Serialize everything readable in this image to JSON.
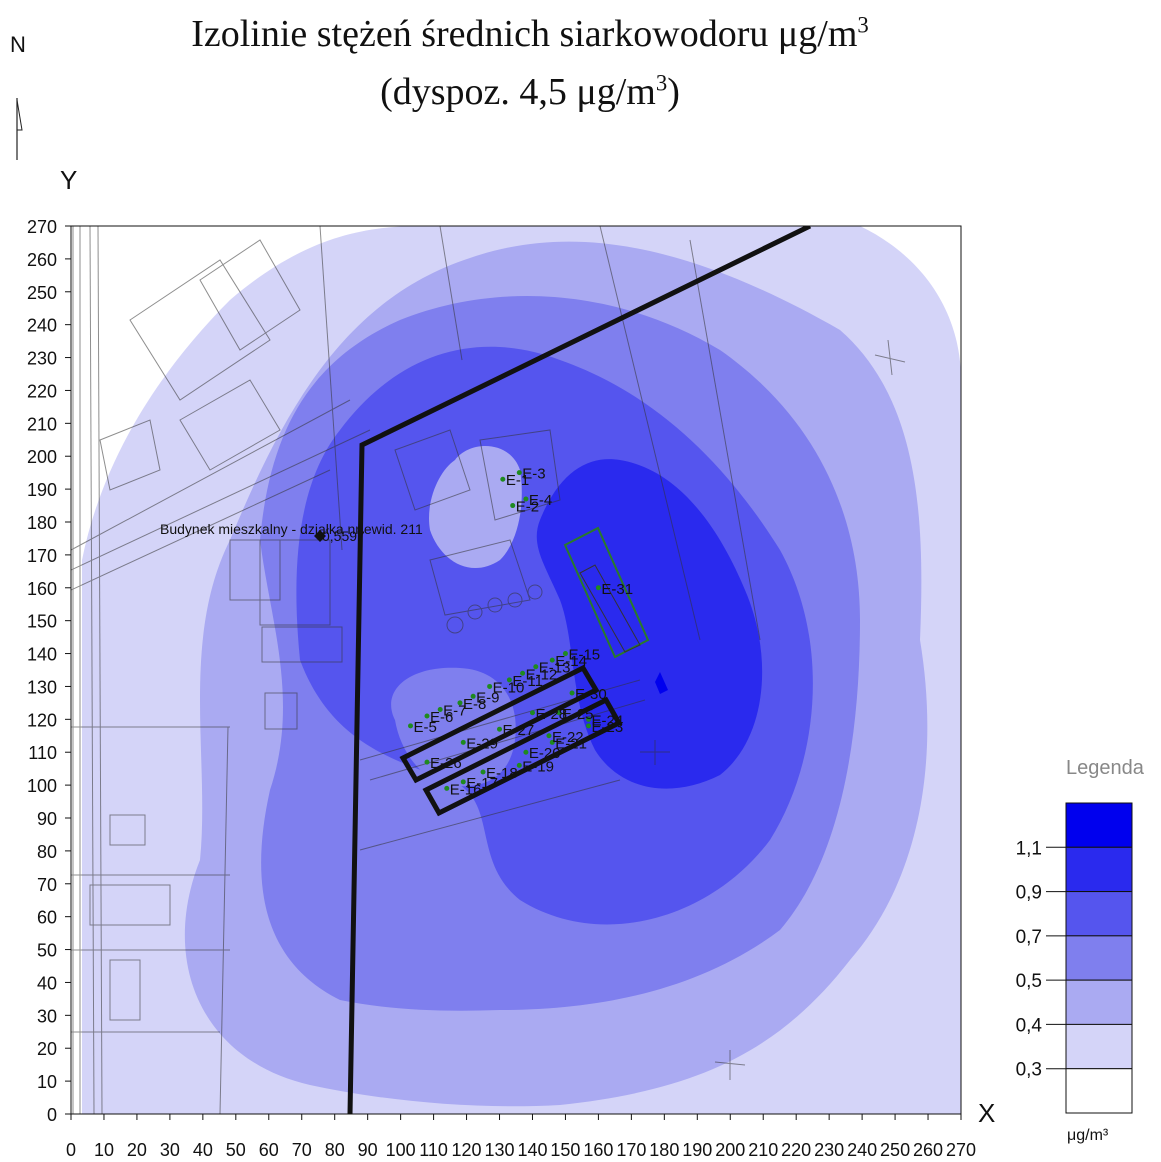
{
  "title_line1_text": "Izolinie stężeń średnich siarkowodoru μg/m",
  "title_line1_sup": "3",
  "title_line2_text": "(dyspoz. 4,5 μg/m",
  "title_line2_sup": "3",
  "title_line2_end": ")",
  "north_label": "N",
  "y_axis_label": "Y",
  "x_axis_label": "X",
  "x_ticks": [
    "0",
    "10",
    "20",
    "30",
    "40",
    "50",
    "60",
    "70",
    "80",
    "90",
    "100",
    "110",
    "120",
    "130",
    "140",
    "150",
    "160",
    "170",
    "180",
    "190",
    "200",
    "210",
    "220",
    "230",
    "240",
    "250",
    "260",
    "270"
  ],
  "y_ticks": [
    "0",
    "10",
    "20",
    "30",
    "40",
    "50",
    "60",
    "70",
    "80",
    "90",
    "100",
    "110",
    "120",
    "130",
    "140",
    "150",
    "160",
    "170",
    "180",
    "190",
    "200",
    "210",
    "220",
    "230",
    "240",
    "250",
    "260",
    "270"
  ],
  "legend": {
    "title": "Legenda",
    "unit": "μg/m³",
    "levels": [
      "0,3",
      "0,4",
      "0,5",
      "0,7",
      "0,9",
      "1,1"
    ],
    "colors": [
      "#ffffff",
      "#d4d4f8",
      "#aaaaf2",
      "#7f7fee",
      "#5555ee",
      "#2a2aee",
      "#0000ee"
    ]
  },
  "annotations": {
    "building_label": "Budynek mieszkalny - działka nr ewid. 211",
    "receptor_value": "0,5597"
  },
  "emitters": [
    {
      "label": "E-1",
      "x": 131,
      "y": 193
    },
    {
      "label": "E-2",
      "x": 134,
      "y": 185
    },
    {
      "label": "E-3",
      "x": 136,
      "y": 195
    },
    {
      "label": "E-4",
      "x": 138,
      "y": 187
    },
    {
      "label": "E-5",
      "x": 103,
      "y": 118
    },
    {
      "label": "E-6",
      "x": 108,
      "y": 121
    },
    {
      "label": "E-7",
      "x": 112,
      "y": 123
    },
    {
      "label": "E-8",
      "x": 118,
      "y": 125
    },
    {
      "label": "E-9",
      "x": 122,
      "y": 127
    },
    {
      "label": "E-10",
      "x": 127,
      "y": 130
    },
    {
      "label": "E-11",
      "x": 133,
      "y": 132
    },
    {
      "label": "E-12",
      "x": 137,
      "y": 134
    },
    {
      "label": "E-13",
      "x": 141,
      "y": 136
    },
    {
      "label": "E-14",
      "x": 146,
      "y": 138
    },
    {
      "label": "E-15",
      "x": 150,
      "y": 140
    },
    {
      "label": "E-16",
      "x": 114,
      "y": 99
    },
    {
      "label": "E-17",
      "x": 119,
      "y": 101
    },
    {
      "label": "E-18",
      "x": 125,
      "y": 104
    },
    {
      "label": "E-19",
      "x": 136,
      "y": 106
    },
    {
      "label": "E-20",
      "x": 138,
      "y": 110
    },
    {
      "label": "E-21",
      "x": 146,
      "y": 113
    },
    {
      "label": "E-22",
      "x": 145,
      "y": 115
    },
    {
      "label": "E-23",
      "x": 157,
      "y": 118
    },
    {
      "label": "E-24",
      "x": 157,
      "y": 120
    },
    {
      "label": "E-25",
      "x": 148,
      "y": 122
    },
    {
      "label": "E-26",
      "x": 108,
      "y": 107
    },
    {
      "label": "E-27",
      "x": 130,
      "y": 117
    },
    {
      "label": "E-28",
      "x": 140,
      "y": 122
    },
    {
      "label": "E-29",
      "x": 119,
      "y": 113
    },
    {
      "label": "E-30",
      "x": 152,
      "y": 128
    },
    {
      "label": "E-31",
      "x": 160,
      "y": 160
    }
  ]
}
